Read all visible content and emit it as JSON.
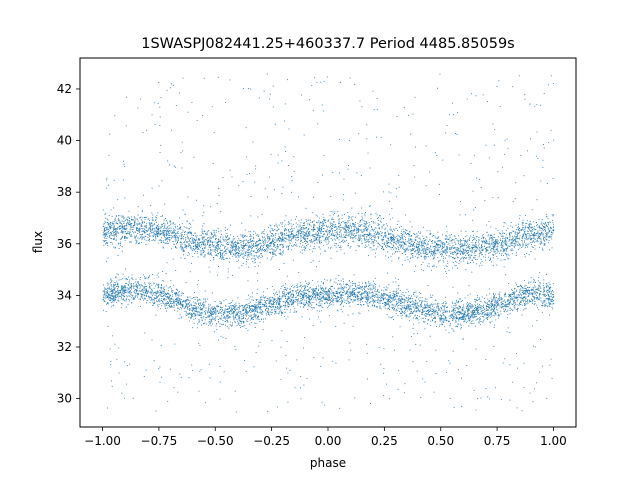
{
  "chart_data": {
    "type": "scatter",
    "title": "1SWASPJ082441.25+460337.7 Period 4485.85059s",
    "xlabel": "phase",
    "ylabel": "flux",
    "xlim": [
      -1.1,
      1.1
    ],
    "ylim": [
      28.9,
      43.2
    ],
    "x_ticks": [
      -1.0,
      -0.75,
      -0.5,
      -0.25,
      0.0,
      0.25,
      0.5,
      0.75,
      1.0
    ],
    "x_tick_labels": [
      "−1.00",
      "−0.75",
      "−0.50",
      "−0.25",
      "0.00",
      "0.25",
      "0.50",
      "0.75",
      "1.00"
    ],
    "y_ticks": [
      30,
      32,
      34,
      36,
      38,
      40,
      42
    ],
    "y_tick_labels": [
      "30",
      "32",
      "34",
      "36",
      "38",
      "40",
      "42"
    ],
    "grid": false,
    "marker_color": "#1f77b4",
    "series": [
      {
        "band": "upper",
        "x": [
          -1.0,
          -0.9,
          -0.8,
          -0.7,
          -0.6,
          -0.5,
          -0.4,
          -0.3,
          -0.2,
          -0.1,
          0.0,
          0.1,
          0.2,
          0.3,
          0.4,
          0.5,
          0.6,
          0.7,
          0.8,
          0.9,
          1.0
        ],
        "y": [
          36.5,
          36.6,
          36.6,
          36.4,
          36.1,
          35.9,
          35.8,
          35.9,
          36.2,
          36.4,
          36.5,
          36.5,
          36.4,
          36.2,
          35.9,
          35.8,
          35.8,
          35.9,
          36.1,
          36.4,
          36.5
        ],
        "spread": 0.55
      },
      {
        "band": "lower",
        "x": [
          -1.0,
          -0.9,
          -0.8,
          -0.7,
          -0.6,
          -0.5,
          -0.4,
          -0.3,
          -0.2,
          -0.1,
          0.0,
          0.1,
          0.2,
          0.3,
          0.4,
          0.5,
          0.6,
          0.7,
          0.8,
          0.9,
          1.0
        ],
        "y": [
          34.0,
          34.2,
          34.2,
          33.9,
          33.5,
          33.3,
          33.3,
          33.5,
          33.8,
          34.0,
          34.0,
          34.1,
          34.0,
          33.8,
          33.5,
          33.3,
          33.3,
          33.5,
          33.8,
          34.1,
          34.0
        ],
        "spread": 0.45
      },
      {
        "band": "scatter-outliers",
        "y_range": [
          29.5,
          42.6
        ]
      }
    ]
  }
}
